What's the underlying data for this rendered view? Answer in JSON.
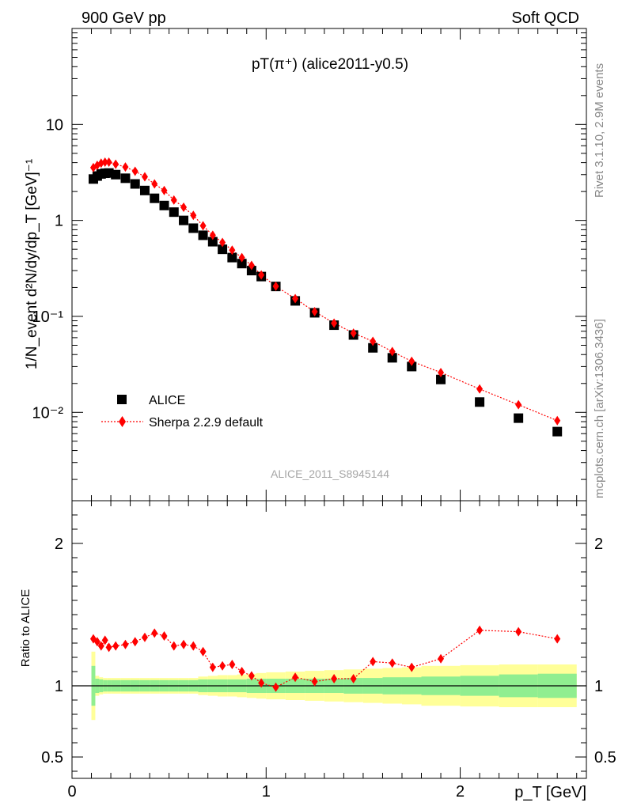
{
  "header": {
    "left": "900 GeV pp",
    "right": "Soft QCD"
  },
  "side": {
    "rivet": "Rivet 3.1.10,  2.9M events",
    "mcplots": "mcplots.cern.ch [arXiv:1306.3436]"
  },
  "colors": {
    "data": "#000000",
    "mc": "#ff0000",
    "band_inner": "#90ee90",
    "band_outer": "#ffff99"
  },
  "chart_data": [
    {
      "type": "scatter",
      "title": "pT(π⁺) (alice2011-y0.5)",
      "analysis_label": "ALICE_2011_S8945144",
      "xlabel": "p_T [GeV]",
      "ylabel": "1/N_event d²N/dy/dp_T [GeV]⁻¹",
      "y_scale": "log",
      "xlim": [
        0,
        2.65
      ],
      "ylim": [
        0.0012,
        100
      ],
      "y_tick_labels": [
        "10⁻²",
        "10⁻¹",
        "1",
        "10"
      ],
      "legend_position": "bottom-left",
      "series": [
        {
          "name": "ALICE",
          "marker": "square",
          "x": [
            0.11,
            0.13,
            0.15,
            0.17,
            0.19,
            0.225,
            0.275,
            0.325,
            0.375,
            0.425,
            0.475,
            0.525,
            0.575,
            0.625,
            0.675,
            0.725,
            0.775,
            0.825,
            0.875,
            0.925,
            0.975,
            1.05,
            1.15,
            1.25,
            1.35,
            1.45,
            1.55,
            1.65,
            1.75,
            1.9,
            2.1,
            2.3,
            2.5
          ],
          "values": [
            2.7,
            2.9,
            3.05,
            3.1,
            3.12,
            3.0,
            2.75,
            2.4,
            2.05,
            1.7,
            1.43,
            1.22,
            1.0,
            0.83,
            0.7,
            0.6,
            0.5,
            0.41,
            0.355,
            0.3,
            0.26,
            0.205,
            0.145,
            0.109,
            0.081,
            0.064,
            0.047,
            0.037,
            0.03,
            0.022,
            0.0128,
            0.0087,
            0.0063
          ]
        },
        {
          "name": "Sherpa 2.2.9 default",
          "marker": "diamond",
          "line": "dotted",
          "x": [
            0.11,
            0.13,
            0.15,
            0.17,
            0.19,
            0.225,
            0.275,
            0.325,
            0.375,
            0.425,
            0.475,
            0.525,
            0.575,
            0.625,
            0.675,
            0.725,
            0.775,
            0.825,
            0.875,
            0.925,
            0.975,
            1.05,
            1.15,
            1.25,
            1.35,
            1.45,
            1.55,
            1.65,
            1.75,
            1.9,
            2.1,
            2.3,
            2.5
          ],
          "values": [
            3.55,
            3.75,
            3.95,
            4.05,
            4.05,
            3.85,
            3.6,
            3.25,
            2.85,
            2.4,
            2.05,
            1.63,
            1.37,
            1.13,
            0.88,
            0.7,
            0.59,
            0.49,
            0.41,
            0.34,
            0.27,
            0.206,
            0.153,
            0.112,
            0.085,
            0.067,
            0.055,
            0.043,
            0.034,
            0.026,
            0.0175,
            0.012,
            0.0082
          ]
        }
      ]
    },
    {
      "type": "scatter",
      "xlabel": "p_T [GeV]",
      "ylabel": "Ratio to ALICE",
      "xlim": [
        0,
        2.65
      ],
      "ylim": [
        0.35,
        2.3
      ],
      "y_ticks": [
        0.5,
        1,
        2
      ],
      "x_ticks": [
        0,
        1,
        2
      ],
      "reference_line": 1,
      "band_edges": [
        0.1,
        0.12,
        0.14,
        0.16,
        0.18,
        0.2,
        0.25,
        0.3,
        0.35,
        0.4,
        0.45,
        0.5,
        0.55,
        0.6,
        0.65,
        0.7,
        0.75,
        0.8,
        0.85,
        0.9,
        0.95,
        1.0,
        1.1,
        1.2,
        1.3,
        1.4,
        1.5,
        1.6,
        1.7,
        1.8,
        2.0,
        2.2,
        2.4,
        2.6
      ],
      "band_inner": [
        0.14,
        0.05,
        0.045,
        0.04,
        0.04,
        0.04,
        0.04,
        0.04,
        0.04,
        0.04,
        0.04,
        0.04,
        0.04,
        0.04,
        0.045,
        0.045,
        0.045,
        0.045,
        0.045,
        0.05,
        0.05,
        0.05,
        0.05,
        0.05,
        0.05,
        0.055,
        0.055,
        0.06,
        0.06,
        0.065,
        0.07,
        0.08,
        0.085
      ],
      "band_outer": [
        0.24,
        0.07,
        0.06,
        0.055,
        0.055,
        0.055,
        0.055,
        0.055,
        0.055,
        0.055,
        0.055,
        0.055,
        0.055,
        0.055,
        0.065,
        0.07,
        0.075,
        0.075,
        0.08,
        0.085,
        0.09,
        0.095,
        0.1,
        0.105,
        0.11,
        0.115,
        0.12,
        0.125,
        0.13,
        0.14,
        0.145,
        0.15,
        0.15
      ],
      "series": [
        {
          "name": "Sherpa 2.2.9 default",
          "marker": "diamond",
          "line": "dotted",
          "x": [
            0.11,
            0.13,
            0.15,
            0.17,
            0.19,
            0.225,
            0.275,
            0.325,
            0.375,
            0.425,
            0.475,
            0.525,
            0.575,
            0.625,
            0.675,
            0.725,
            0.775,
            0.825,
            0.875,
            0.925,
            0.975,
            1.05,
            1.15,
            1.25,
            1.35,
            1.45,
            1.55,
            1.65,
            1.75,
            1.9,
            2.1,
            2.3,
            2.5
          ],
          "values": [
            1.33,
            1.31,
            1.28,
            1.32,
            1.27,
            1.28,
            1.29,
            1.31,
            1.34,
            1.37,
            1.35,
            1.28,
            1.29,
            1.28,
            1.24,
            1.13,
            1.14,
            1.15,
            1.1,
            1.07,
            1.02,
            0.99,
            1.06,
            1.03,
            1.05,
            1.05,
            1.17,
            1.16,
            1.13,
            1.19,
            1.39,
            1.38,
            1.33
          ]
        }
      ]
    }
  ]
}
